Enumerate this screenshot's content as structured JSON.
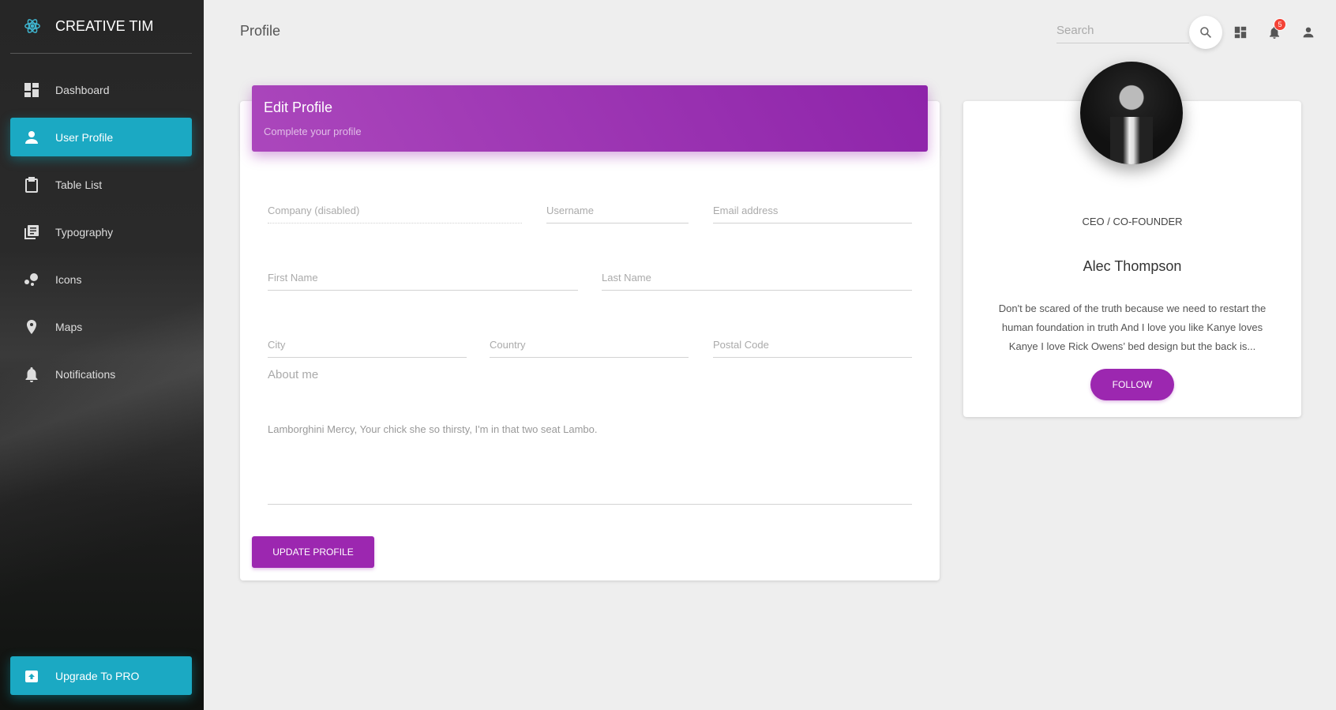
{
  "sidebar": {
    "brand": "CREATIVE TIM",
    "items": [
      {
        "label": "Dashboard",
        "icon": "dashboard-icon"
      },
      {
        "label": "User Profile",
        "icon": "person-icon",
        "active": true
      },
      {
        "label": "Table List",
        "icon": "clipboard-icon"
      },
      {
        "label": "Typography",
        "icon": "library-books-icon"
      },
      {
        "label": "Icons",
        "icon": "bubbles-icon"
      },
      {
        "label": "Maps",
        "icon": "location-pin-icon"
      },
      {
        "label": "Notifications",
        "icon": "bell-icon"
      }
    ],
    "upgrade": "Upgrade To PRO",
    "active_color": "#1ba9c3"
  },
  "topbar": {
    "title": "Profile",
    "search_placeholder": "Search",
    "notification_count": "5"
  },
  "edit_profile": {
    "title": "Edit Profile",
    "subtitle": "Complete your profile",
    "fields": {
      "company": "Company (disabled)",
      "username": "Username",
      "email": "Email address",
      "first_name": "First Name",
      "last_name": "Last Name",
      "city": "City",
      "country": "Country",
      "postal": "Postal Code"
    },
    "about_label": "About me",
    "about_text": "Lamborghini Mercy, Your chick she so thirsty, I'm in that two seat Lambo.",
    "update_button": "UPDATE PROFILE",
    "accent": "#9c27b0"
  },
  "profile_card": {
    "role": "CEO / CO-FOUNDER",
    "name": "Alec Thompson",
    "bio_lines": [
      "Don't be scared of the truth because we need to restart the",
      "human foundation in truth And I love you like Kanye loves",
      "Kanye I love Rick Owens’ bed design but the back is..."
    ],
    "follow_button": "FOLLOW"
  }
}
